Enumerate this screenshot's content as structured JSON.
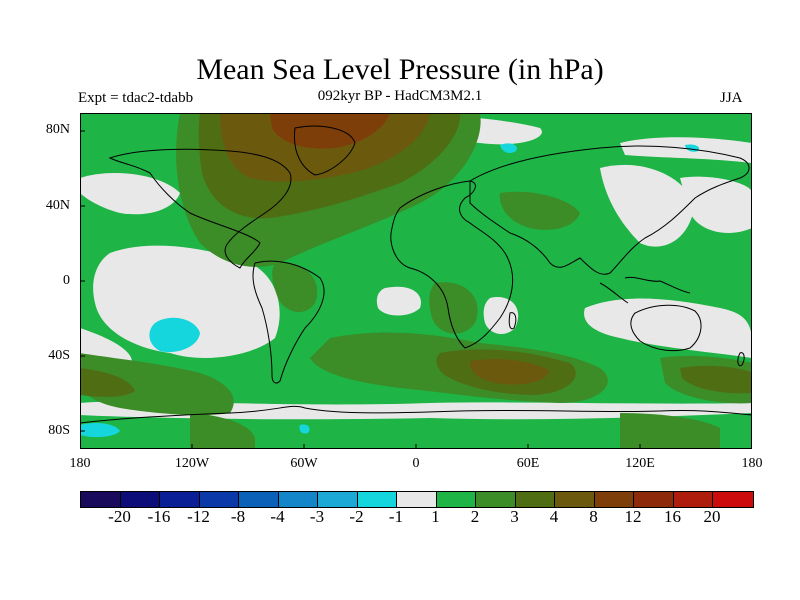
{
  "title": "Mean Sea Level Pressure (in hPa)",
  "experiment": "Expt = tdac2-tdabb",
  "subtitle": "092kyr BP - HadCM3M2.1",
  "season": "JJA",
  "lat_labels": [
    "80N",
    "40N",
    "0",
    "40S",
    "80S"
  ],
  "lon_labels": [
    "180",
    "120W",
    "60W",
    "0",
    "60E",
    "120E",
    "180"
  ],
  "colorbar": {
    "colors": [
      "#1a0a5c",
      "#0d0d7a",
      "#0a1f96",
      "#0b3aa8",
      "#0b60b8",
      "#1286c8",
      "#1ca9d6",
      "#14d6dc",
      "#e8e8e8",
      "#1eb446",
      "#3c8c28",
      "#4f6e14",
      "#6b5a0e",
      "#7e3e0a",
      "#8c2a0a",
      "#ae1c0c",
      "#cc0c0c"
    ],
    "labels": [
      "-20",
      "-16",
      "-12",
      "-8",
      "-4",
      "-3",
      "-2",
      "-1",
      "1",
      "2",
      "3",
      "4",
      "8",
      "12",
      "16",
      "20"
    ]
  },
  "legend_colors": {
    "neg_light": "#14d6dc",
    "near_zero": "#e8e8e8",
    "pos_2": "#1eb446",
    "pos_3": "#3c8c28",
    "pos_4": "#4f6e14",
    "pos_8": "#6b5a0e",
    "pos_12": "#7e3e0a"
  }
}
